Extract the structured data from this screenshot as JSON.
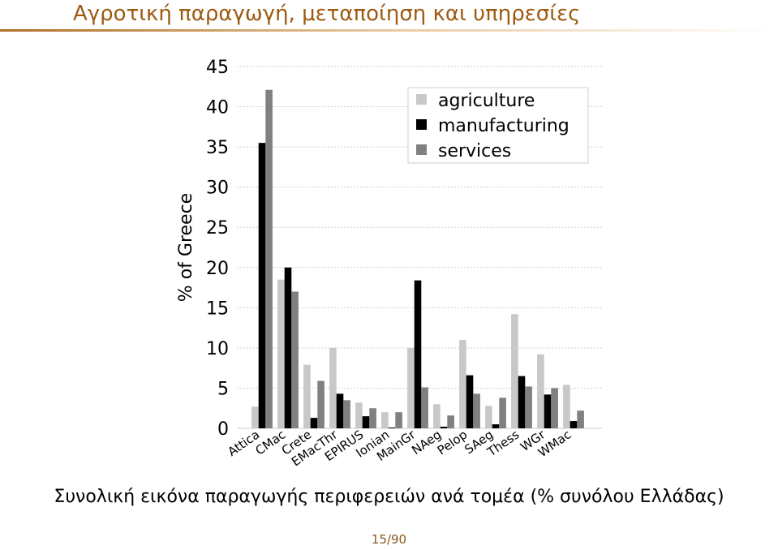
{
  "slide": {
    "title": "Αγροτική παραγωγή, μεταποίηση και υπηρεσίες",
    "caption": "Συνολική εικόνα παραγωγής περιφερειών ανά τομέα (% συνόλου Ελλάδας)",
    "page_number": "15/90"
  },
  "chart_data": {
    "type": "bar",
    "title": "",
    "xlabel": "",
    "ylabel": "% of Greece",
    "ylim": [
      0,
      45
    ],
    "yticks": [
      0,
      5,
      10,
      15,
      20,
      25,
      30,
      35,
      40,
      45
    ],
    "grid": true,
    "legend_position": "top-right",
    "categories": [
      "Attica",
      "CMac",
      "Crete",
      "EMacThr",
      "EPIRUS",
      "Ionian",
      "MainGr",
      "NAeg",
      "Pelop",
      "SAeg",
      "Thess",
      "WGr",
      "WMac"
    ],
    "series": [
      {
        "name": "agriculture",
        "color": "#c8c8c8",
        "values": [
          2.7,
          18.5,
          7.9,
          10.0,
          3.2,
          2.0,
          10.0,
          3.0,
          11.0,
          2.8,
          14.2,
          9.2,
          5.4
        ]
      },
      {
        "name": "manufacturing",
        "color": "#000000",
        "values": [
          35.5,
          20.0,
          1.3,
          4.3,
          1.5,
          0.1,
          18.4,
          0.2,
          6.6,
          0.5,
          6.5,
          4.2,
          0.9
        ]
      },
      {
        "name": "services",
        "color": "#808080",
        "values": [
          42.1,
          17.0,
          5.9,
          3.5,
          2.5,
          2.0,
          5.1,
          1.6,
          4.3,
          3.8,
          5.2,
          5.0,
          2.2
        ]
      }
    ]
  }
}
